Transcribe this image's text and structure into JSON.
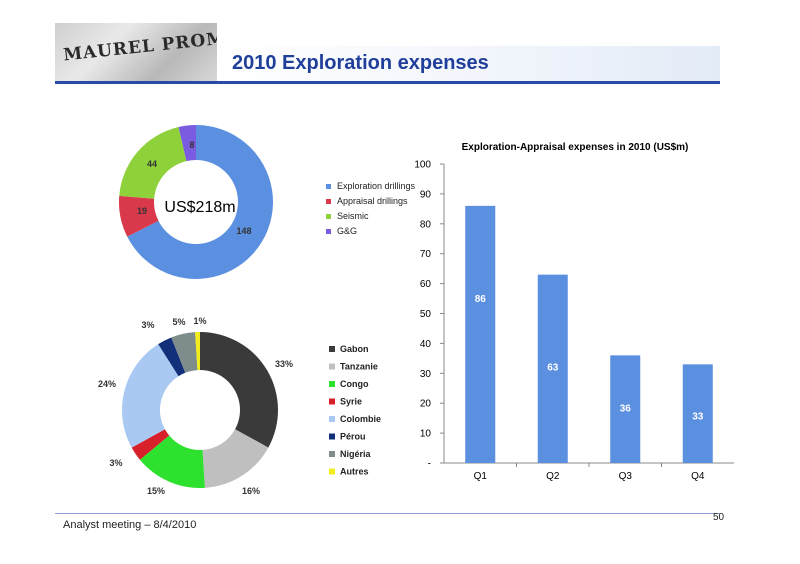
{
  "header": {
    "logo_text": "MAUREL PROM",
    "title": "2010 Exploration expenses"
  },
  "footer": {
    "text": "Analyst meeting – 8/4/2010",
    "page_number": "50"
  },
  "chart_data": [
    {
      "type": "pie",
      "donut": true,
      "center_label": "US$218m",
      "legend_position": "right",
      "slices": [
        {
          "label": "Exploration drillings",
          "value": 148,
          "display": "148",
          "color": "#5b8fe0"
        },
        {
          "label": "Appraisal drillings",
          "value": 19,
          "display": "19",
          "color": "#d9394b"
        },
        {
          "label": "Seismic",
          "value": 44,
          "display": "44",
          "color": "#8fd13a"
        },
        {
          "label": "G&G",
          "value": 8,
          "display": "8",
          "color": "#7b5be0"
        }
      ]
    },
    {
      "type": "pie",
      "donut": true,
      "legend_position": "right",
      "slices": [
        {
          "label": "Gabon",
          "value": 33,
          "display": "33%",
          "color": "#3a3a3a"
        },
        {
          "label": "Tanzanie",
          "value": 16,
          "display": "16%",
          "color": "#bfbfbf"
        },
        {
          "label": "Congo",
          "value": 15,
          "display": "15%",
          "color": "#2ee12e"
        },
        {
          "label": "Syrie",
          "value": 3,
          "display": "3%",
          "color": "#d8202a"
        },
        {
          "label": "Colombie",
          "value": 24,
          "display": "24%",
          "color": "#a9c9f2"
        },
        {
          "label": "Pérou",
          "value": 3,
          "display": "3%",
          "color": "#122f7a"
        },
        {
          "label": "Nigéria",
          "value": 5,
          "display": "5%",
          "color": "#7f8c8c"
        },
        {
          "label": "Autres",
          "value": 1,
          "display": "1%",
          "color": "#f2ec1c"
        }
      ]
    },
    {
      "type": "bar",
      "title": "Exploration-Appraisal expenses in 2010 (US$m)",
      "categories": [
        "Q1",
        "Q2",
        "Q3",
        "Q4"
      ],
      "values": [
        86,
        63,
        36,
        33
      ],
      "ylim": [
        0,
        100
      ],
      "yticks": [
        "-",
        "10",
        "20",
        "30",
        "40",
        "50",
        "60",
        "70",
        "80",
        "90",
        "100"
      ],
      "bar_color": "#5b8fe0",
      "grid": false
    }
  ]
}
